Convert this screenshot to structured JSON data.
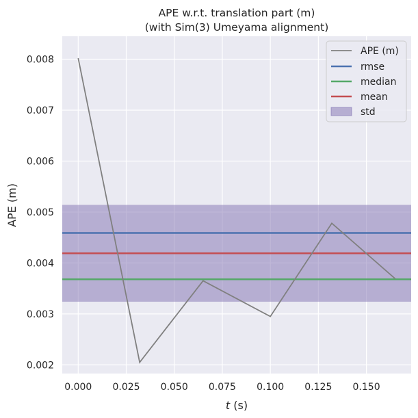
{
  "chart_data": {
    "type": "line",
    "title_line1": "APE w.r.t. translation part (m)",
    "title_line2": "(with Sim(3) Umeyama alignment)",
    "xlabel_italic": "t",
    "xlabel_rest": " (s)",
    "ylabel": "APE (m)",
    "xlim": [
      -0.0083,
      0.1733
    ],
    "ylim": [
      0.00183,
      0.00845
    ],
    "x_ticks": [
      0.0,
      0.025,
      0.05,
      0.075,
      0.1,
      0.125,
      0.15
    ],
    "x_tick_labels": [
      "0.000",
      "0.025",
      "0.050",
      "0.075",
      "0.100",
      "0.125",
      "0.150"
    ],
    "y_ticks": [
      0.002,
      0.003,
      0.004,
      0.005,
      0.006,
      0.007,
      0.008
    ],
    "y_tick_labels": [
      "0.002",
      "0.003",
      "0.004",
      "0.005",
      "0.006",
      "0.007",
      "0.008"
    ],
    "grid": true,
    "legend_position": "top-right",
    "background_color": "#eaeaf2",
    "series": [
      {
        "name": "APE (m)",
        "color": "#808080",
        "x": [
          0.0,
          0.032,
          0.065,
          0.1,
          0.132,
          0.165
        ],
        "y": [
          0.00802,
          0.00205,
          0.00365,
          0.00295,
          0.00478,
          0.00369
        ]
      }
    ],
    "reference_lines": [
      {
        "name": "rmse",
        "value": 0.00459,
        "color": "#4c72b0"
      },
      {
        "name": "median",
        "value": 0.00368,
        "color": "#55a868"
      },
      {
        "name": "mean",
        "value": 0.00419,
        "color": "#c44e52"
      }
    ],
    "std_band": {
      "name": "std",
      "lower": 0.00324,
      "upper": 0.00514,
      "color": "#8172b2"
    },
    "legend_entries": [
      "APE (m)",
      "rmse",
      "median",
      "mean",
      "std"
    ]
  }
}
